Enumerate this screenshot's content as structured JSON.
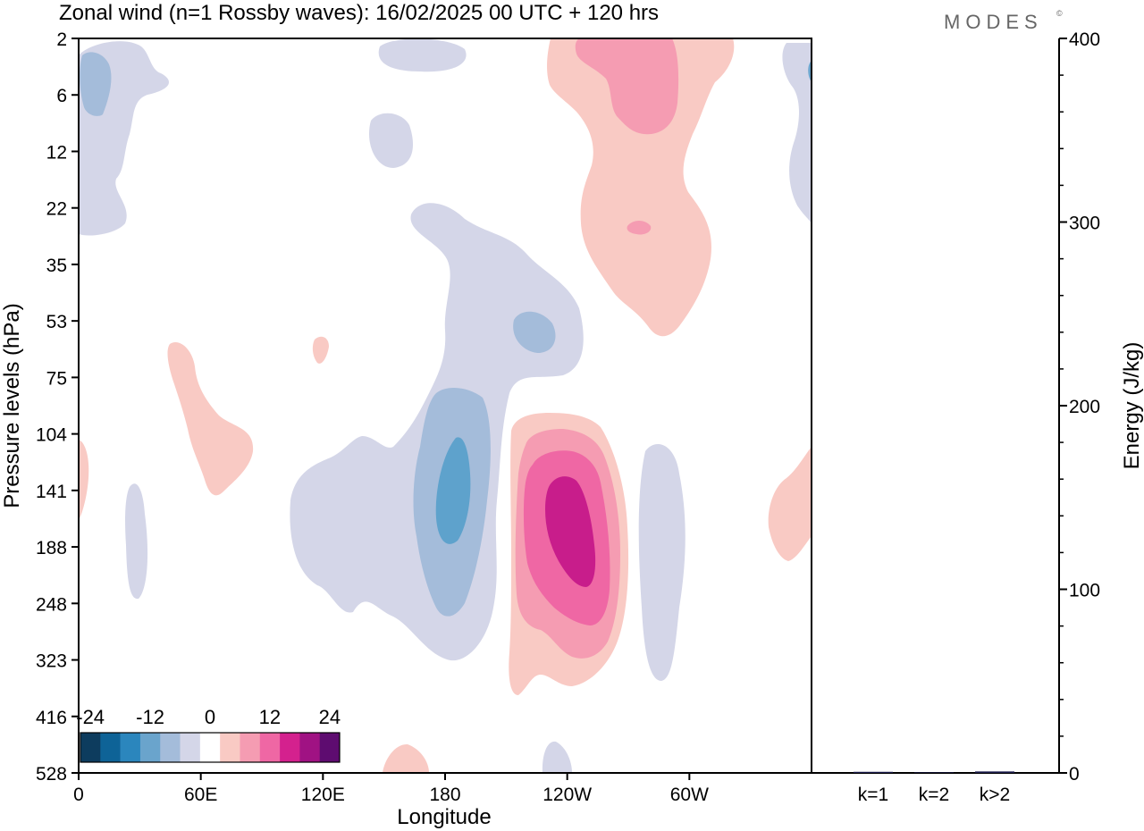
{
  "chart_data": {
    "type": "contour",
    "title": "Zonal wind (n=1 Rossby waves):  16/02/2025  00 UTC  + 120 hrs",
    "brand": "MODES",
    "brand_mark": "©",
    "main_panel": {
      "xlabel": "Longitude",
      "ylabel": "Pressure levels (hPa)",
      "x_ticks": [
        {
          "lon": 0,
          "label": "0"
        },
        {
          "lon": 60,
          "label": "60E"
        },
        {
          "lon": 120,
          "label": "120E"
        },
        {
          "lon": 180,
          "label": "180"
        },
        {
          "lon": 240,
          "label": "120W"
        },
        {
          "lon": 300,
          "label": "60W"
        }
      ],
      "xlim": [
        0,
        360
      ],
      "y_levels": [
        "2",
        "6",
        "12",
        "22",
        "35",
        "53",
        "75",
        "104",
        "141",
        "188",
        "248",
        "323",
        "416",
        "528"
      ],
      "y_scale": "model levels (top = 2 hPa, bottom = 528 hPa)",
      "grid": false,
      "contour_levels": [
        -24,
        -20,
        -16,
        -12,
        -8,
        -4,
        0,
        4,
        8,
        12,
        16,
        20,
        24
      ],
      "colorbar": {
        "placement": "bottom-left",
        "tick_labels": [
          "-24",
          "-12",
          "0",
          "12",
          "24"
        ],
        "colors": [
          "#0d3c5e",
          "#0e6397",
          "#2b86bd",
          "#6aa4cc",
          "#a4bcda",
          "#d4d6e8",
          "#ffffff",
          "#f9cac4",
          "#f59cb2",
          "#ef67a4",
          "#d4218e",
          "#a01283",
          "#5e0c70"
        ]
      },
      "features": [
        {
          "name": "negative anomaly core",
          "lon": 180,
          "pressure_hPa": 141,
          "min_value": -12
        },
        {
          "name": "positive anomaly core",
          "lon": 240,
          "pressure_hPa": 160,
          "max_value": 16
        },
        {
          "name": "upper-level positive anomaly",
          "lon": 245,
          "pressure_hPa": 6,
          "max_value": 8
        },
        {
          "name": "upper-level negative anomaly",
          "lon": 220,
          "pressure_hPa": 53,
          "min_value": -8
        }
      ]
    },
    "energy_panel": {
      "type": "bar",
      "ylabel": "Energy (J/kg)",
      "ylim": [
        0,
        400
      ],
      "y_ticks": [
        0,
        100,
        200,
        300,
        400
      ],
      "categories": [
        "k=1",
        "k=2",
        "k>2"
      ],
      "values": [
        0.6,
        0.3,
        0.8
      ],
      "bar_color": "#1a1a4a"
    }
  }
}
